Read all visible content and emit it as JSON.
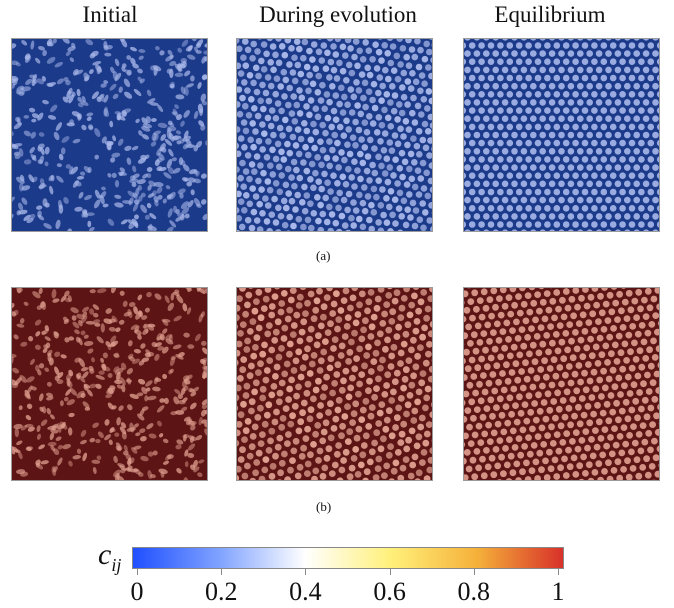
{
  "column_titles": [
    "Initial",
    "During evolution",
    "Equilibrium"
  ],
  "row_a": {
    "caption": "(a)",
    "color_low": "#1c3a8a",
    "color_high": "#a9b8ea",
    "panels": [
      "initial-disordered",
      "evolving-hex",
      "equilibrium-hex"
    ]
  },
  "row_b": {
    "caption": "(b)",
    "color_low": "#5c1414",
    "color_high": "#e0a090",
    "panels": [
      "initial-disordered",
      "evolving-hex",
      "equilibrium-hex"
    ]
  },
  "colorbar": {
    "symbol": "c",
    "subscript": "ij",
    "ticks": [
      "0",
      "0.2",
      "0.4",
      "0.6",
      "0.8",
      "1"
    ],
    "colors": [
      "#1f4fff",
      "#7fa2ff",
      "#ffffff",
      "#fff07a",
      "#f5b13a",
      "#d8312a"
    ]
  }
}
